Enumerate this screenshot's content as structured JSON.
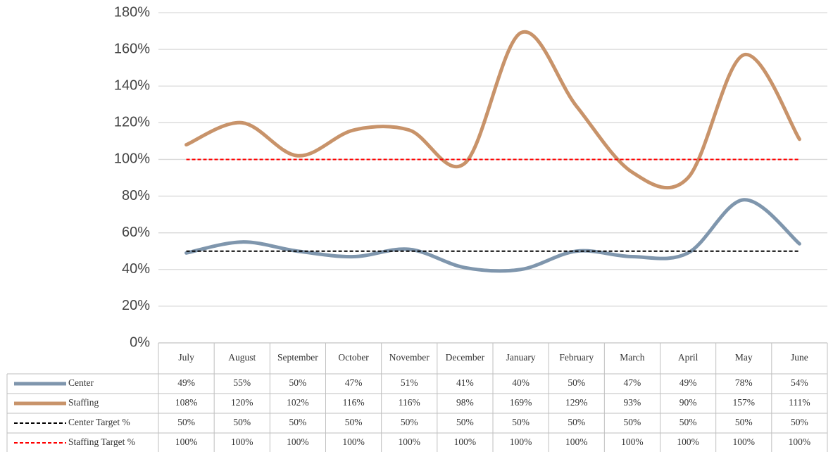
{
  "chart_data": {
    "type": "line",
    "smooth": true,
    "grid": true,
    "data_table": true,
    "categories": [
      "July",
      "August",
      "September",
      "October",
      "November",
      "December",
      "January",
      "February",
      "March",
      "April",
      "May",
      "June"
    ],
    "ylim": [
      0,
      180
    ],
    "yticks": [
      {
        "value": 0,
        "label": "0%"
      },
      {
        "value": 20,
        "label": "20%"
      },
      {
        "value": 40,
        "label": "40%"
      },
      {
        "value": 60,
        "label": "60%"
      },
      {
        "value": 80,
        "label": "80%"
      },
      {
        "value": 100,
        "label": "100%"
      },
      {
        "value": 120,
        "label": "120%"
      },
      {
        "value": 140,
        "label": "140%"
      },
      {
        "value": 160,
        "label": "160%"
      },
      {
        "value": 180,
        "label": "180%"
      }
    ],
    "series": [
      {
        "name": "Center",
        "color": "#7f96ad",
        "dashed": false,
        "values": [
          49,
          55,
          50,
          47,
          51,
          41,
          40,
          50,
          47,
          49,
          78,
          54
        ],
        "value_labels": [
          "49%",
          "55%",
          "50%",
          "47%",
          "51%",
          "41%",
          "40%",
          "50%",
          "47%",
          "49%",
          "78%",
          "54%"
        ]
      },
      {
        "name": "Staffing",
        "color": "#c8936a",
        "dashed": false,
        "values": [
          108,
          120,
          102,
          116,
          116,
          98,
          169,
          129,
          93,
          90,
          157,
          111
        ],
        "value_labels": [
          "108%",
          "120%",
          "102%",
          "116%",
          "116%",
          "98%",
          "169%",
          "129%",
          "93%",
          "90%",
          "157%",
          "111%"
        ]
      },
      {
        "name": "Center Target %",
        "color": "#000000",
        "dashed": true,
        "values": [
          50,
          50,
          50,
          50,
          50,
          50,
          50,
          50,
          50,
          50,
          50,
          50
        ],
        "value_labels": [
          "50%",
          "50%",
          "50%",
          "50%",
          "50%",
          "50%",
          "50%",
          "50%",
          "50%",
          "50%",
          "50%",
          "50%"
        ]
      },
      {
        "name": "Staffing Target %",
        "color": "#ff0000",
        "dashed": true,
        "values": [
          100,
          100,
          100,
          100,
          100,
          100,
          100,
          100,
          100,
          100,
          100,
          100
        ],
        "value_labels": [
          "100%",
          "100%",
          "100%",
          "100%",
          "100%",
          "100%",
          "100%",
          "100%",
          "100%",
          "100%",
          "100%",
          "100%"
        ]
      }
    ]
  }
}
